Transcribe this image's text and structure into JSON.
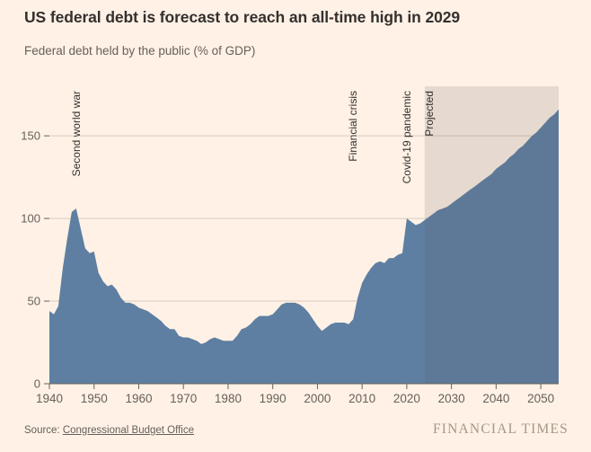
{
  "title": "US federal debt is forecast to reach an all-time high in 2029",
  "subtitle": "Federal debt held by the public (% of GDP)",
  "footer": {
    "source_prefix": "Source: ",
    "source_link": "Congressional Budget Office",
    "brand": "FINANCIAL TIMES"
  },
  "colors": {
    "background": "#FFF1E5",
    "area": "#5E7FA2",
    "grid": "#D8CCBF",
    "axis": "#66605B",
    "tick_label": "#66605B",
    "annotation": "#33302E",
    "projected_overlay": "rgba(102,96,91,0.16)"
  },
  "chart_data": {
    "type": "area",
    "title": "US federal debt is forecast to reach an all-time high in 2029",
    "ylabel": "Federal debt held by the public (% of GDP)",
    "xlim": [
      1940,
      2054
    ],
    "ylim": [
      0,
      180
    ],
    "grid": "horizontal",
    "yticks": [
      0,
      50,
      100,
      150
    ],
    "xticks": [
      1940,
      1950,
      1960,
      1970,
      1980,
      1990,
      2000,
      2010,
      2020,
      2030,
      2040,
      2050
    ],
    "projected_from": 2024,
    "x_start": 1940,
    "values": [
      44,
      42,
      47,
      70,
      88,
      104,
      106,
      94,
      82,
      79,
      80,
      67,
      62,
      59,
      60,
      57,
      52,
      49,
      49,
      48,
      46,
      45,
      44,
      42,
      40,
      38,
      35,
      33,
      33,
      29,
      28,
      28,
      27,
      26,
      24,
      25,
      27,
      28,
      27,
      26,
      26,
      26,
      29,
      33,
      34,
      36,
      39,
      41,
      41,
      41,
      42,
      45,
      48,
      49,
      49,
      49,
      48,
      46,
      43,
      39,
      35,
      32,
      34,
      36,
      37,
      37,
      37,
      36,
      39,
      52,
      61,
      66,
      70,
      73,
      74,
      73,
      76,
      76,
      78,
      79,
      100,
      98,
      96,
      97,
      99,
      101,
      103,
      105,
      106,
      107,
      109,
      111,
      113,
      115,
      117,
      119,
      121,
      123,
      125,
      127,
      130,
      132,
      134,
      137,
      139,
      142,
      144,
      147,
      150,
      152,
      155,
      158,
      161,
      163,
      166
    ],
    "annotations": [
      {
        "label": "Second world war",
        "year": 1946
      },
      {
        "label": "Financial crisis",
        "year": 2008
      },
      {
        "label": "Covid-19 pandemic",
        "year": 2020
      },
      {
        "label": "Projected",
        "year": 2025
      }
    ]
  }
}
